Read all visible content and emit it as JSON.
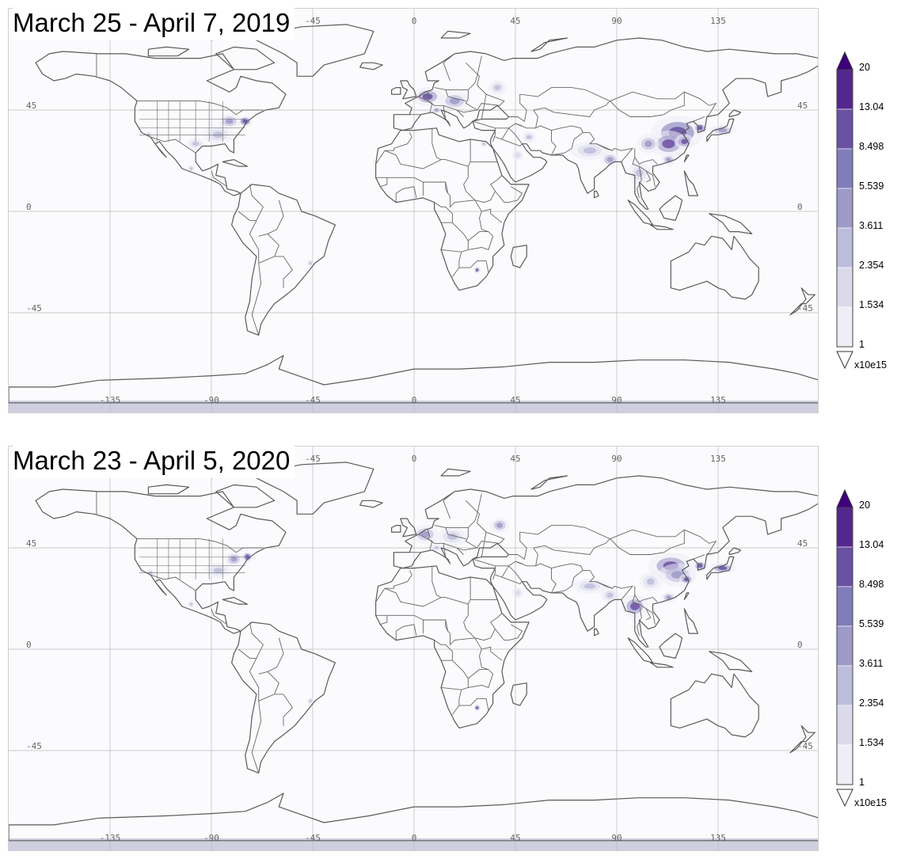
{
  "panels": [
    {
      "title": "March 25 - April 7, 2019",
      "hotspots": [
        {
          "lon": 117,
          "lat": 35,
          "level": 13,
          "rx": 14,
          "ry": 9
        },
        {
          "lon": 113,
          "lat": 30,
          "level": 8.5,
          "rx": 10,
          "ry": 7
        },
        {
          "lon": 120,
          "lat": 31,
          "level": 8.5,
          "rx": 5,
          "ry": 4
        },
        {
          "lon": 104,
          "lat": 30,
          "level": 5.5,
          "rx": 6,
          "ry": 5
        },
        {
          "lon": 113,
          "lat": 23,
          "level": 5.5,
          "rx": 4,
          "ry": 3
        },
        {
          "lon": 127,
          "lat": 37,
          "level": 8.5,
          "rx": 4,
          "ry": 3
        },
        {
          "lon": 137,
          "lat": 36,
          "level": 5.5,
          "rx": 7,
          "ry": 3
        },
        {
          "lon": 78,
          "lat": 27,
          "level": 3.6,
          "rx": 10,
          "ry": 5
        },
        {
          "lon": 87,
          "lat": 23,
          "level": 5.5,
          "rx": 5,
          "ry": 4
        },
        {
          "lon": 100,
          "lat": 17,
          "level": 3.6,
          "rx": 6,
          "ry": 6
        },
        {
          "lon": 6,
          "lat": 51,
          "level": 8.5,
          "rx": 8,
          "ry": 5
        },
        {
          "lon": 18,
          "lat": 49,
          "level": 5.5,
          "rx": 8,
          "ry": 5
        },
        {
          "lon": 37,
          "lat": 55,
          "level": 3.6,
          "rx": 5,
          "ry": 4
        },
        {
          "lon": 10,
          "lat": 45,
          "level": 5.5,
          "rx": 3,
          "ry": 2
        },
        {
          "lon": 31,
          "lat": 30,
          "level": 3.6,
          "rx": 2,
          "ry": 2
        },
        {
          "lon": 51,
          "lat": 33,
          "level": 2.4,
          "rx": 4,
          "ry": 3
        },
        {
          "lon": 28,
          "lat": -26,
          "level": 8.5,
          "rx": 2,
          "ry": 2
        },
        {
          "lon": -75,
          "lat": 40,
          "level": 13,
          "rx": 4,
          "ry": 3
        },
        {
          "lon": -82,
          "lat": 40,
          "level": 5.5,
          "rx": 6,
          "ry": 4
        },
        {
          "lon": -87,
          "lat": 34,
          "level": 3.6,
          "rx": 8,
          "ry": 5
        },
        {
          "lon": -97,
          "lat": 30,
          "level": 2.4,
          "rx": 5,
          "ry": 3
        },
        {
          "lon": -118,
          "lat": 34,
          "level": 2.4,
          "rx": 2,
          "ry": 2
        },
        {
          "lon": -99,
          "lat": 19,
          "level": 2.4,
          "rx": 2,
          "ry": 2
        },
        {
          "lon": -46,
          "lat": -23,
          "level": 2.4,
          "rx": 2,
          "ry": 2
        },
        {
          "lon": 46,
          "lat": 25,
          "level": 1.6,
          "rx": 3,
          "ry": 3
        }
      ]
    },
    {
      "title": "March 23 - April 5, 2020",
      "hotspots": [
        {
          "lon": 114,
          "lat": 37,
          "level": 8.5,
          "rx": 12,
          "ry": 7
        },
        {
          "lon": 117,
          "lat": 33,
          "level": 5.5,
          "rx": 10,
          "ry": 6
        },
        {
          "lon": 121,
          "lat": 31,
          "level": 8.5,
          "rx": 4,
          "ry": 3
        },
        {
          "lon": 105,
          "lat": 30,
          "level": 3.6,
          "rx": 6,
          "ry": 5
        },
        {
          "lon": 113,
          "lat": 23,
          "level": 5.5,
          "rx": 4,
          "ry": 3
        },
        {
          "lon": 127,
          "lat": 37,
          "level": 8.5,
          "rx": 4,
          "ry": 3
        },
        {
          "lon": 137,
          "lat": 36,
          "level": 8.5,
          "rx": 7,
          "ry": 3
        },
        {
          "lon": 98,
          "lat": 19,
          "level": 8.5,
          "rx": 7,
          "ry": 6
        },
        {
          "lon": 87,
          "lat": 24,
          "level": 3.6,
          "rx": 5,
          "ry": 4
        },
        {
          "lon": 78,
          "lat": 28,
          "level": 2.4,
          "rx": 9,
          "ry": 4
        },
        {
          "lon": 5,
          "lat": 51,
          "level": 5.5,
          "rx": 7,
          "ry": 5
        },
        {
          "lon": 17,
          "lat": 50,
          "level": 3.6,
          "rx": 8,
          "ry": 5
        },
        {
          "lon": 38,
          "lat": 55,
          "level": 5.5,
          "rx": 5,
          "ry": 4
        },
        {
          "lon": 10,
          "lat": 45,
          "level": 3.6,
          "rx": 3,
          "ry": 2
        },
        {
          "lon": 28,
          "lat": -26,
          "level": 8.5,
          "rx": 2,
          "ry": 2
        },
        {
          "lon": -74,
          "lat": 41,
          "level": 13,
          "rx": 3,
          "ry": 3
        },
        {
          "lon": -80,
          "lat": 40,
          "level": 5.5,
          "rx": 5,
          "ry": 4
        },
        {
          "lon": -87,
          "lat": 35,
          "level": 2.4,
          "rx": 7,
          "ry": 4
        },
        {
          "lon": -99,
          "lat": 20,
          "level": 2.4,
          "rx": 2,
          "ry": 2
        },
        {
          "lon": -117,
          "lat": 34,
          "level": 2.4,
          "rx": 2,
          "ry": 2
        },
        {
          "lon": -46,
          "lat": -23,
          "level": 2.4,
          "rx": 2,
          "ry": 2
        },
        {
          "lon": 46,
          "lat": 25,
          "level": 1.6,
          "rx": 3,
          "ry": 3
        }
      ]
    }
  ],
  "grid": {
    "top_lon_labels": [
      "-45",
      "0",
      "45",
      "90",
      "135"
    ],
    "bottom_lon_labels": [
      "-135",
      "-90",
      "-45",
      "0",
      "45",
      "90",
      "135"
    ],
    "left_lat_labels": [
      "45",
      "0",
      "-45"
    ],
    "right_lat_labels": [
      "45",
      "0",
      "-45"
    ]
  },
  "legend": {
    "tick_labels": [
      "20",
      "13.04",
      "8.498",
      "5.539",
      "3.611",
      "2.354",
      "1.534",
      "1"
    ],
    "unit": "x10e15",
    "colors": [
      "#54278f",
      "#6a51a3",
      "#807dba",
      "#9e9ac8",
      "#bcbddc",
      "#dadaeb",
      "#efedf5"
    ],
    "over_color": "#3f007d",
    "under_color": "#ffffff"
  },
  "map_style": {
    "ocean": "#fbfbfd",
    "coast": "#5a5a5a",
    "border": "#666666",
    "grid": "#bbbbbb",
    "antarctic_band": "#cfcfe0"
  }
}
